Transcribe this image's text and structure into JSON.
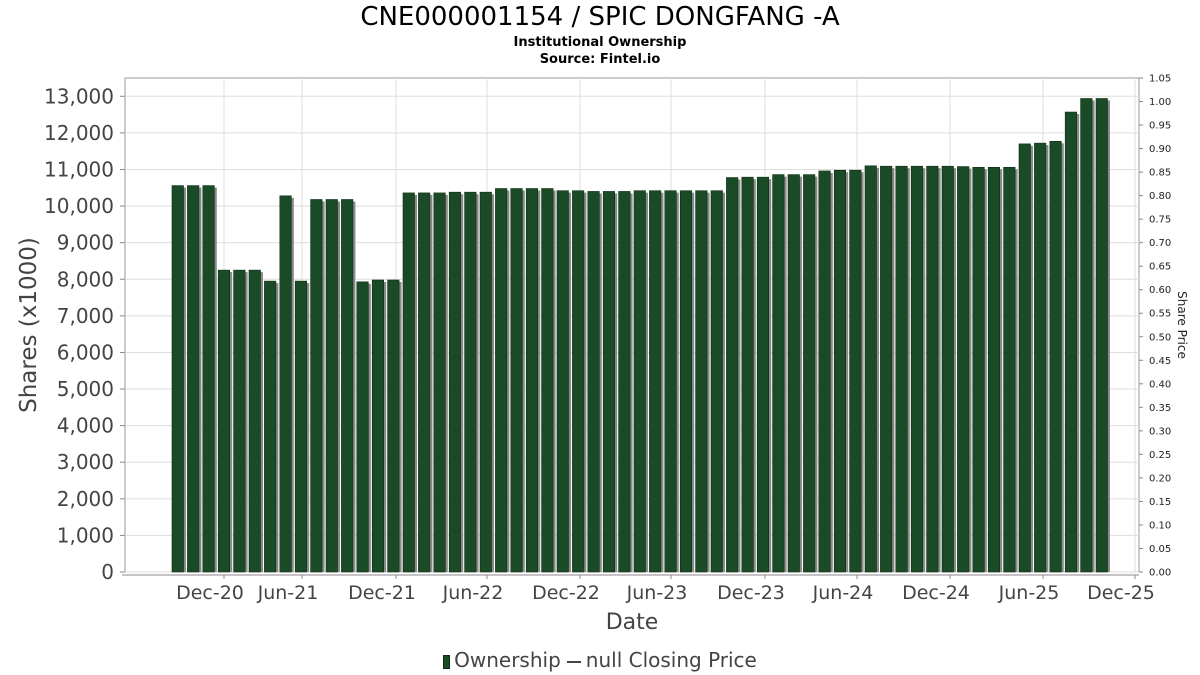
{
  "chart_data": {
    "type": "bar",
    "title": "CNE000001154 / SPIC DONGFANG -A",
    "subtitle": "Institutional Ownership",
    "source": "Source: Fintel.io",
    "xlabel": "Date",
    "ylabel": "Shares (x1000)",
    "ylabel_right": "Share Price",
    "ylim": [
      0,
      13500
    ],
    "ylim_right": [
      0,
      1.05
    ],
    "y_ticks": [
      "0",
      "1,000",
      "2,000",
      "3,000",
      "4,000",
      "5,000",
      "6,000",
      "7,000",
      "8,000",
      "9,000",
      "10,000",
      "11,000",
      "12,000",
      "13,000"
    ],
    "y_right_ticks": [
      "0.00",
      "0.05",
      "0.10",
      "0.15",
      "0.20",
      "0.25",
      "0.30",
      "0.35",
      "0.40",
      "0.45",
      "0.50",
      "0.55",
      "0.60",
      "0.65",
      "0.70",
      "0.75",
      "0.80",
      "0.85",
      "0.90",
      "0.95",
      "1.00",
      "1.05"
    ],
    "x_ticks": [
      "Dec-20",
      "Jun-21",
      "Dec-21",
      "Jun-22",
      "Dec-22",
      "Jun-23",
      "Dec-23",
      "Jun-24",
      "Dec-24",
      "Jun-25",
      "Dec-25"
    ],
    "grid": true,
    "legend_position": "bottom",
    "bar_color": "#1a4b26",
    "series": [
      {
        "name": "Ownership",
        "values": [
          10560,
          10560,
          10560,
          8250,
          8250,
          8250,
          7950,
          10280,
          7950,
          10180,
          10180,
          10180,
          7930,
          7980,
          7980,
          10360,
          10360,
          10360,
          10380,
          10380,
          10380,
          10480,
          10480,
          10480,
          10480,
          10420,
          10420,
          10400,
          10400,
          10400,
          10420,
          10420,
          10420,
          10420,
          10420,
          10420,
          10780,
          10790,
          10790,
          10860,
          10860,
          10860,
          10960,
          10980,
          10980,
          11100,
          11090,
          11090,
          11090,
          11090,
          11090,
          11080,
          11060,
          11060,
          11060,
          11700,
          11720,
          11770,
          12570,
          12940,
          12940
        ]
      }
    ],
    "legend": {
      "ownership": "Ownership",
      "closing_price": "null Closing Price"
    }
  }
}
